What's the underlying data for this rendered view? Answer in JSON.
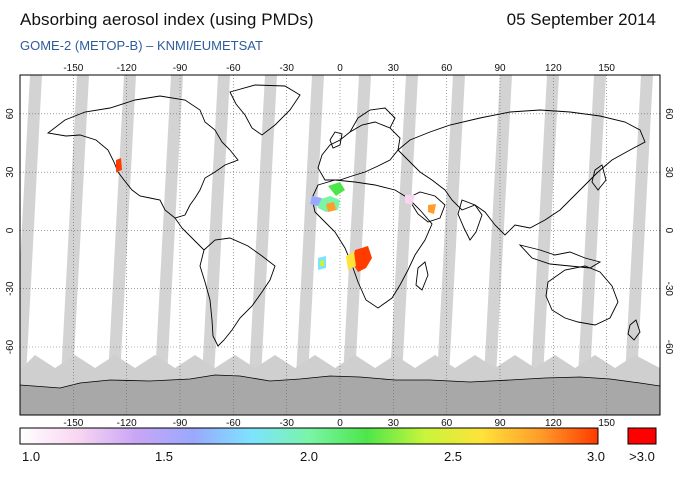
{
  "header": {
    "title": "Absorbing aerosol index (using PMDs)",
    "date": "05 September 2014",
    "subtitle": "GOME-2 (METOP-B)  –  KNMI/EUMETSAT"
  },
  "map": {
    "lon_ticks": [
      "-150",
      "-120",
      "-90",
      "-60",
      "-30",
      "0",
      "30",
      "60",
      "90",
      "120",
      "150"
    ],
    "lat_ticks": [
      "60",
      "30",
      "0",
      "-30",
      "-60"
    ],
    "colors": {
      "coast": "#000000",
      "grid": "#666666",
      "swath_gap": "#c8c8c8",
      "polar_gap": "#cfcfcf",
      "antarctica": "#a8a8a8"
    }
  },
  "colorbar": {
    "labels": [
      "1.0",
      "1.5",
      "2.0",
      "2.5",
      "3.0"
    ],
    "overflow_label": ">3.0",
    "overflow_color": "#ff0000",
    "gradient_colors": [
      "#ffffff",
      "#f8d6f2",
      "#c9a6f5",
      "#9aa8ff",
      "#7de3ff",
      "#7af5a8",
      "#4de64a",
      "#c8f53a",
      "#ffe23a",
      "#ff9c2a",
      "#ff3b00"
    ]
  }
}
